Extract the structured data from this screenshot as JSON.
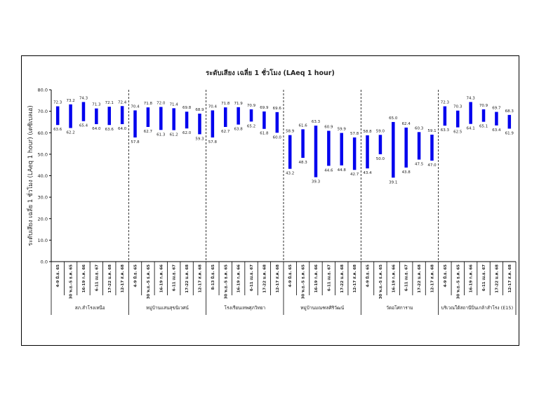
{
  "chart_data": {
    "type": "floating-bar",
    "title": "ระดับเสียง เฉลี่ย 1 ชั่วโมง (LAeq 1 hour)",
    "ylabel": "ระดับเสียง เฉลี่ย 1 ชั่วโมง (LAeq 1 hour) (เดซิเบลเอ)",
    "ylim": [
      0,
      80
    ],
    "yticks": [
      "0.0",
      "10.0",
      "20.0",
      "30.0",
      "40.0",
      "50.0",
      "60.0",
      "70.0",
      "80.0"
    ],
    "bar_color": "#0000ee",
    "groups": [
      {
        "name": "สภ.สำโรงเหนือ",
        "bars": [
          {
            "period": "4-9 มิ.ย. 65",
            "max": 72.3,
            "min": 63.6
          },
          {
            "period": "30 พ.ย.-5 ธ.ค. 65",
            "max": 73.2,
            "min": 62.2
          },
          {
            "period": "16-19 ก.ค. 66",
            "max": 74.3,
            "min": 65.4
          },
          {
            "period": "6-11 เม.ย. 67",
            "max": 71.3,
            "min": 64.0
          },
          {
            "period": "17-22 ม.ค. 68",
            "max": 72.1,
            "min": 63.6
          },
          {
            "period": "12-17 ส.ค. 68",
            "max": 72.4,
            "min": 64.0
          }
        ]
      },
      {
        "name": "หมู่บ้านแสนสุขนิเวศน์",
        "bars": [
          {
            "period": "4-9 มิ.ย. 65",
            "max": 70.4,
            "min": 57.8
          },
          {
            "period": "30 พ.ย.-5 ธ.ค. 65",
            "max": 71.8,
            "min": 62.7
          },
          {
            "period": "16-19 ก.ค. 66",
            "max": 72.0,
            "min": 61.3
          },
          {
            "period": "6-11 เม.ย. 67",
            "max": 71.4,
            "min": 61.2
          },
          {
            "period": "17-22 ม.ค. 68",
            "max": 69.8,
            "min": 62.0
          },
          {
            "period": "12-17 ส.ค. 68",
            "max": 68.9,
            "min": 59.3
          }
        ]
      },
      {
        "name": "โรงเรียนเทพศุภวิทยา",
        "bars": [
          {
            "period": "8-13 มิ.ย. 65",
            "max": 70.4,
            "min": 57.8
          },
          {
            "period": "30 พ.ย.-5 ธ.ค. 65",
            "max": 71.8,
            "min": 62.7
          },
          {
            "period": "16-19 ก.ค. 66",
            "max": 71.9,
            "min": 63.8
          },
          {
            "period": "6-11 เม.ย. 67",
            "max": 70.9,
            "min": 65.2
          },
          {
            "period": "17-22 ม.ค. 68",
            "max": 69.9,
            "min": 61.8
          },
          {
            "period": "12-17 ส.ค. 68",
            "max": 69.6,
            "min": 60.0
          }
        ]
      },
      {
        "name": "หมู่บ้านมณฑลศิริวัฒน์",
        "bars": [
          {
            "period": "4-9 มิ.ย. 65",
            "max": 58.9,
            "min": 43.2
          },
          {
            "period": "30 พ.ย.-5 ธ.ค. 65",
            "max": 61.6,
            "min": 48.3
          },
          {
            "period": "16-19 ก.ค. 66",
            "max": 63.3,
            "min": 39.3
          },
          {
            "period": "6-11 เม.ย. 67",
            "max": 60.9,
            "min": 44.6
          },
          {
            "period": "17-22 ม.ค. 68",
            "max": 59.9,
            "min": 44.8
          },
          {
            "period": "12-17 ส.ค. 68",
            "max": 57.8,
            "min": 42.7
          }
        ]
      },
      {
        "name": "วัดอโศการาม",
        "bars": [
          {
            "period": "4-9 มิ.ย. 65",
            "max": 58.8,
            "min": 43.4
          },
          {
            "period": "30 พ.ย.-5 ธ.ค. 65",
            "max": 59.0,
            "min": 50.0
          },
          {
            "period": "16-19 ก.ค. 66",
            "max": 65.0,
            "min": 39.1
          },
          {
            "period": "6-11 เม.ย. 67",
            "max": 62.4,
            "min": 43.8
          },
          {
            "period": "17-22 ม.ค. 68",
            "max": 60.3,
            "min": 47.5
          },
          {
            "period": "12-17 ส.ค. 68",
            "max": 59.1,
            "min": 47.0
          }
        ]
      },
      {
        "name": "บริเวณใต้สถานีปิ่นเกล้าสำโรง (E15)",
        "bars": [
          {
            "period": "4-9 มิ.ย. 65",
            "max": 72.3,
            "min": 63.3
          },
          {
            "period": "30 พ.ย.-5 ธ.ค. 65",
            "max": 70.3,
            "min": 62.5
          },
          {
            "period": "16-19 ก.ค. 66",
            "max": 74.3,
            "min": 64.1
          },
          {
            "period": "6-11 เม.ย. 67",
            "max": 70.9,
            "min": 65.1
          },
          {
            "period": "17-22 ม.ค. 68",
            "max": 69.7,
            "min": 63.4
          },
          {
            "period": "12-17 ส.ค. 68",
            "max": 68.3,
            "min": 61.9
          }
        ]
      }
    ]
  }
}
